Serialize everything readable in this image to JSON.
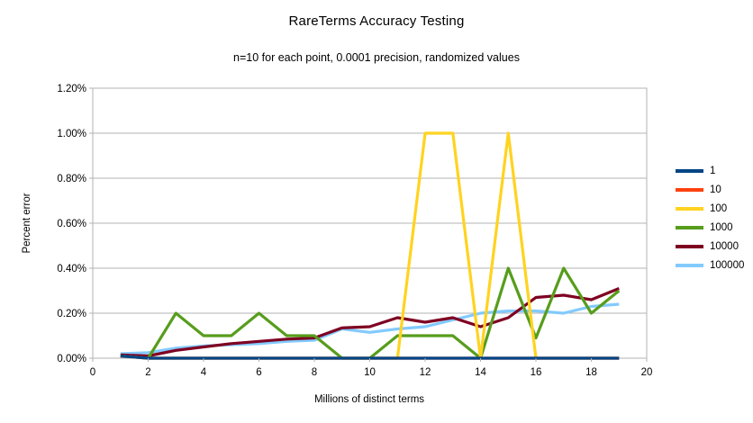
{
  "chart_data": {
    "type": "line",
    "title": "RareTerms Accuracy Testing",
    "subtitle": "n=10 for each point, 0.0001 precision, randomized values",
    "xlabel": "Millions of distinct terms",
    "ylabel": "Percent error",
    "grid": true,
    "legend_position": "right",
    "xlim": [
      0,
      20
    ],
    "ylim": [
      0,
      1.2
    ],
    "y_unit": "percent",
    "x_ticks": [
      0,
      2,
      4,
      6,
      8,
      10,
      12,
      14,
      16,
      18,
      20
    ],
    "y_ticks": [
      {
        "value": 0.0,
        "label": "0.00%"
      },
      {
        "value": 0.2,
        "label": "0.20%"
      },
      {
        "value": 0.4,
        "label": "0.40%"
      },
      {
        "value": 0.6,
        "label": "0.60%"
      },
      {
        "value": 0.8,
        "label": "0.80%"
      },
      {
        "value": 1.0,
        "label": "1.00%"
      },
      {
        "value": 1.2,
        "label": "1.20%"
      }
    ],
    "x": [
      1,
      2,
      3,
      4,
      5,
      6,
      7,
      8,
      9,
      10,
      11,
      12,
      13,
      14,
      15,
      16,
      17,
      18,
      19
    ],
    "series": [
      {
        "name": "1",
        "color": "#004586",
        "values": [
          0.01,
          0,
          0,
          0,
          0,
          0,
          0,
          0,
          0,
          0,
          0,
          0,
          0,
          0,
          0,
          0,
          0,
          0,
          0
        ]
      },
      {
        "name": "10",
        "color": "#ff420e",
        "values": [
          0.01,
          0,
          0,
          0,
          0,
          0,
          0,
          0,
          0,
          0,
          0,
          0,
          0,
          0,
          0,
          0,
          0,
          0,
          0
        ]
      },
      {
        "name": "100",
        "color": "#ffd320",
        "values": [
          0.01,
          0,
          0,
          0,
          0,
          0,
          0,
          0,
          0,
          0,
          0,
          1.0,
          1.0,
          0,
          1.0,
          0,
          0,
          0,
          0
        ]
      },
      {
        "name": "1000",
        "color": "#579d1c",
        "values": [
          0.01,
          0,
          0.2,
          0.1,
          0.1,
          0.2,
          0.1,
          0.1,
          0,
          0,
          0.1,
          0.1,
          0.1,
          0,
          0.4,
          0.09,
          0.4,
          0.2,
          0.3
        ]
      },
      {
        "name": "10000",
        "color": "#7e0021",
        "values": [
          0.015,
          0.01,
          0.035,
          0.05,
          0.065,
          0.075,
          0.085,
          0.09,
          0.135,
          0.14,
          0.18,
          0.16,
          0.18,
          0.14,
          0.18,
          0.27,
          0.28,
          0.26,
          0.31
        ]
      },
      {
        "name": "100000",
        "color": "#83caff",
        "values": [
          0.02,
          0.025,
          0.045,
          0.055,
          0.06,
          0.065,
          0.075,
          0.08,
          0.13,
          0.115,
          0.13,
          0.14,
          0.17,
          0.2,
          0.21,
          0.21,
          0.2,
          0.23,
          0.24
        ]
      }
    ],
    "style": {
      "grid_color": "#b3b3b3",
      "axis_color": "#b3b3b3",
      "line_width": 3.2
    }
  }
}
